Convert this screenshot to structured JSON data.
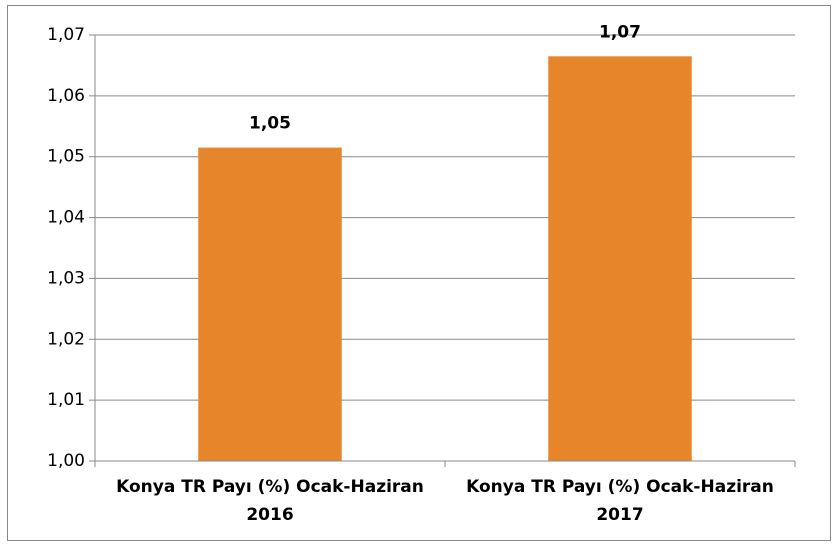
{
  "chart_data": {
    "type": "bar",
    "categories": [
      "Konya TR Payı (%) Ocak-Haziran 2016",
      "Konya TR Payı (%) Ocak-Haziran 2017"
    ],
    "values": [
      1.0515,
      1.0665
    ],
    "value_labels": [
      "1,05",
      "1,07"
    ],
    "color": "#e6852a",
    "ylim": [
      1.0,
      1.07
    ],
    "yticks": [
      {
        "value": 1.0,
        "label": "1,00"
      },
      {
        "value": 1.01,
        "label": "1,01"
      },
      {
        "value": 1.02,
        "label": "1,02"
      },
      {
        "value": 1.03,
        "label": "1,03"
      },
      {
        "value": 1.04,
        "label": "1,04"
      },
      {
        "value": 1.05,
        "label": "1,05"
      },
      {
        "value": 1.06,
        "label": "1,06"
      },
      {
        "value": 1.07,
        "label": "1,07"
      }
    ],
    "grid": true
  }
}
